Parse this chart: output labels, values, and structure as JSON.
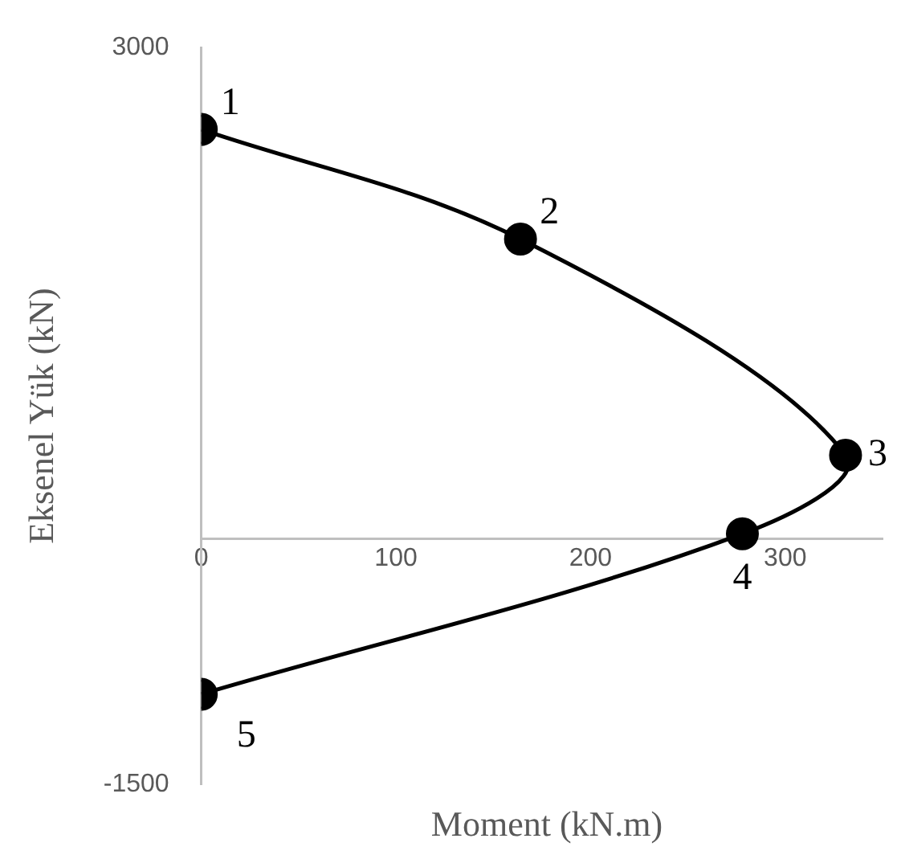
{
  "chart_data": {
    "type": "line",
    "xlabel": "Moment (kN.m)",
    "ylabel": "Eksenel Yük (kN)",
    "x": [
      0,
      164,
      331,
      278,
      0
    ],
    "series": [
      {
        "color": "#000000",
        "values": [
          2500,
          1830,
          510,
          30,
          -950
        ]
      }
    ],
    "xlim": [
      0,
      350
    ],
    "xticks": [
      0,
      100,
      200,
      300
    ],
    "ylim": [
      -1500,
      3000
    ],
    "yticks": [
      -1500,
      3000
    ],
    "grid": false,
    "legend": false,
    "marker": "circle",
    "line_style": "solid",
    "annotations": [
      {
        "text": "1",
        "x": 0,
        "y": 2500
      },
      {
        "text": "2",
        "x": 164,
        "y": 1830
      },
      {
        "text": "3",
        "x": 331,
        "y": 510
      },
      {
        "text": "4",
        "x": 278,
        "y": 30
      },
      {
        "text": "5",
        "x": 0,
        "y": -950
      }
    ]
  }
}
